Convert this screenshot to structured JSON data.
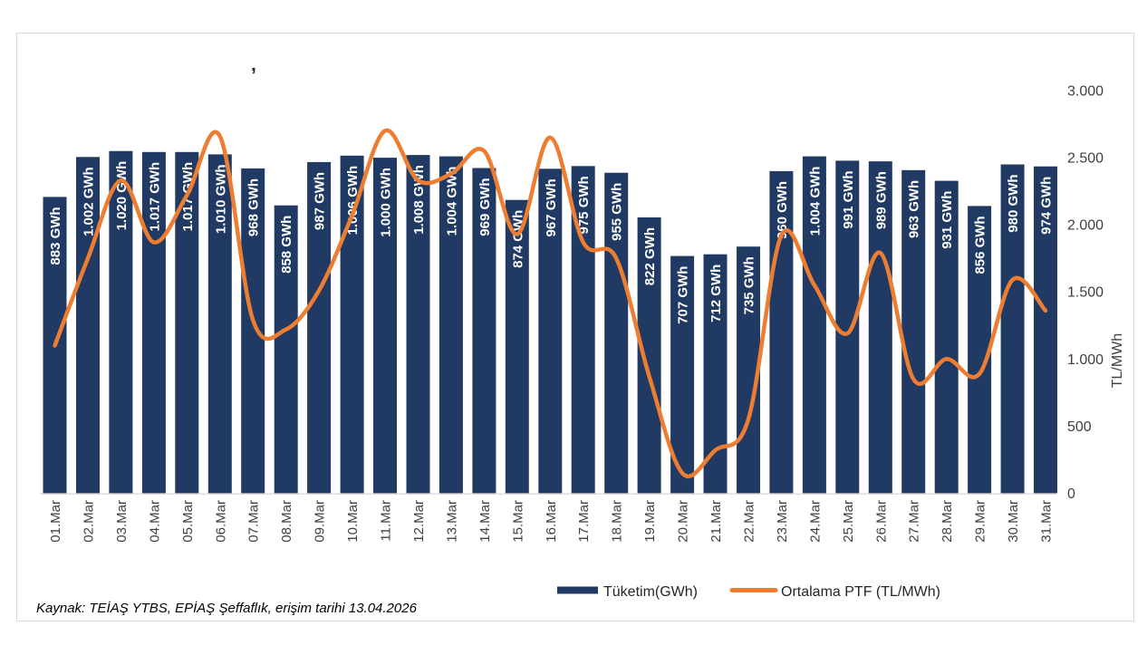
{
  "title": ",",
  "footer": {
    "source": "Kaynak: TEİAŞ YTBS, EPİAŞ Şeffaflık, erişim tarihi 13.04.2026"
  },
  "colors": {
    "bar": "#203A64",
    "line": "#ED7D31",
    "axis_text": "#404040",
    "bar_label_text": "#FFFFFF",
    "border": "#D9D9D9"
  },
  "chart_data": {
    "type": "combo",
    "title": ",",
    "categories": [
      "01.Mar",
      "02.Mar",
      "03.Mar",
      "04.Mar",
      "05.Mar",
      "06.Mar",
      "07.Mar",
      "08.Mar",
      "09.Mar",
      "10.Mar",
      "11.Mar",
      "12.Mar",
      "13.Mar",
      "14.Mar",
      "15.Mar",
      "16.Mar",
      "17.Mar",
      "18.Mar",
      "19.Mar",
      "20.Mar",
      "21.Mar",
      "22.Mar",
      "23.Mar",
      "24.Mar",
      "25.Mar",
      "26.Mar",
      "27.Mar",
      "28.Mar",
      "29.Mar",
      "30.Mar",
      "31.Mar"
    ],
    "series": [
      {
        "name": "Tüketim(GWh)",
        "type": "bar",
        "unit": "GWh",
        "color": "#203A64",
        "values": [
          883,
          1002,
          1020,
          1017,
          1017,
          1010,
          968,
          858,
          987,
          1006,
          1000,
          1008,
          1004,
          969,
          874,
          967,
          975,
          955,
          822,
          707,
          712,
          735,
          960,
          1004,
          991,
          989,
          963,
          931,
          856,
          980,
          974
        ],
        "labels": [
          "883 GWh",
          "1.002 GWh",
          "1.020 GWh",
          "1.017 GWh",
          "1.017 GWh",
          "1.010 GWh",
          "968 GWh",
          "858 GWh",
          "987 GWh",
          "1.006 GWh",
          "1.000 GWh",
          "1.008 GWh",
          "1.004 GWh",
          "969 GWh",
          "874 GWh",
          "967 GWh",
          "975 GWh",
          "955 GWh",
          "822 GWh",
          "707 GWh",
          "712 GWh",
          "735 GWh",
          "960 GWh",
          "1.004 GWh",
          "991 GWh",
          "989 GWh",
          "963 GWh",
          "931 GWh",
          "856 GWh",
          "980 GWh",
          "974 GWh"
        ],
        "hidden_axis": {
          "min": 0,
          "max": 1200
        }
      },
      {
        "name": "Ortalama PTF (TL/MWh)",
        "type": "line",
        "unit": "TL/MWh",
        "color": "#ED7D31",
        "smooth": true,
        "values": [
          1100,
          1750,
          2330,
          1870,
          2220,
          2660,
          1290,
          1220,
          1510,
          2070,
          2700,
          2330,
          2380,
          2550,
          1930,
          2650,
          1870,
          1750,
          870,
          150,
          320,
          550,
          1920,
          1550,
          1190,
          1790,
          850,
          1000,
          890,
          1590,
          1360
        ]
      }
    ],
    "right_axis": {
      "label": "TL/MWh",
      "min": 0,
      "max": 3000,
      "step": 500,
      "tick_labels": [
        "0",
        "500",
        "1.000",
        "1.500",
        "2.000",
        "2.500",
        "3.000"
      ]
    },
    "grid": false,
    "legend_position": "bottom"
  }
}
